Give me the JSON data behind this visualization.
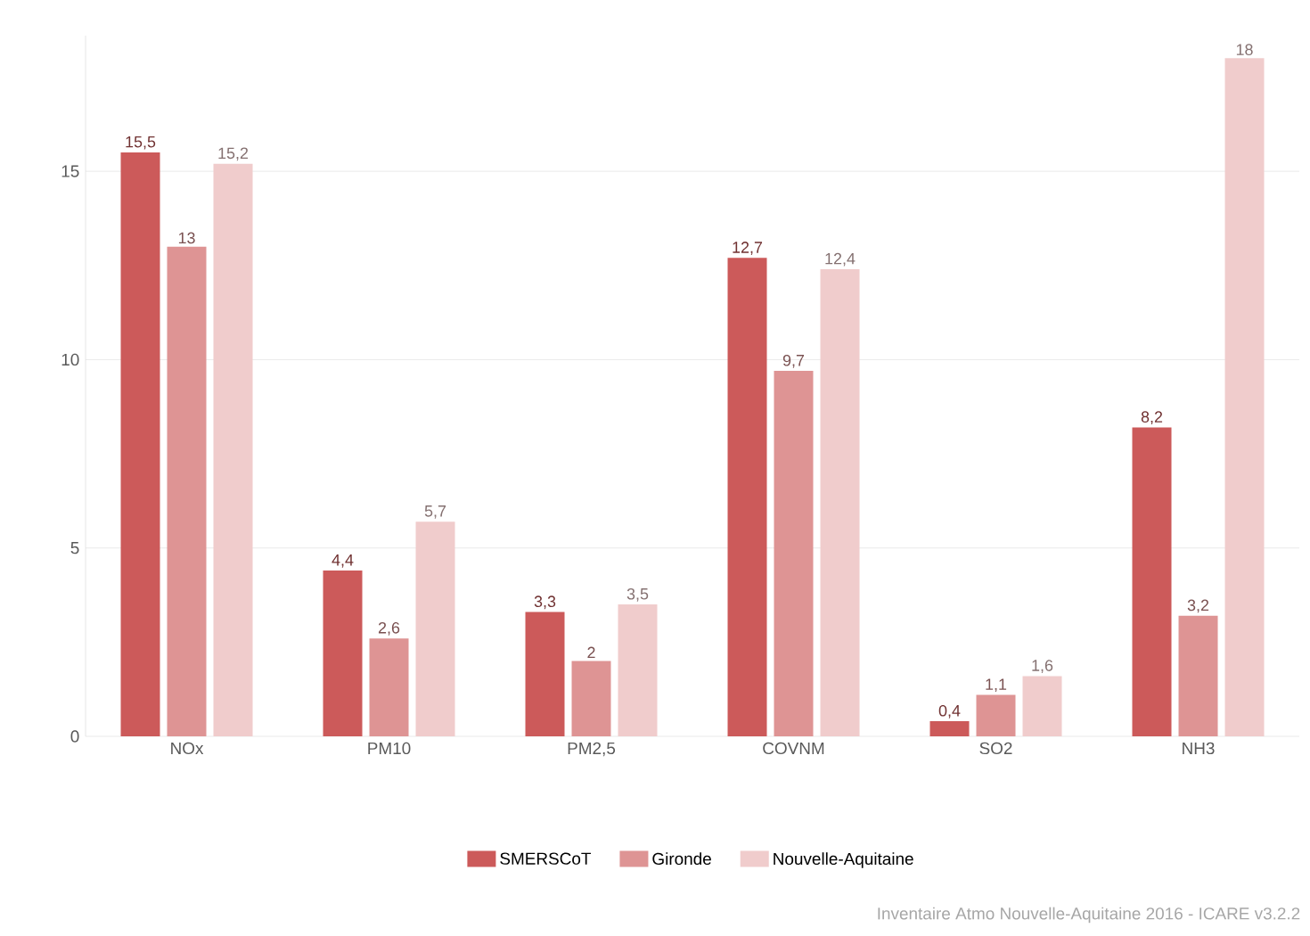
{
  "chart_data": {
    "type": "bar",
    "categories": [
      "NOx",
      "PM10",
      "PM2,5",
      "COVNM",
      "SO2",
      "NH3"
    ],
    "series": [
      {
        "name": "SMERSCoT",
        "color": "#cc5a5a",
        "values": [
          15.5,
          4.4,
          3.3,
          12.7,
          0.4,
          8.2
        ],
        "value_labels": [
          "15,5",
          "4,4",
          "3,3",
          "12,7",
          "0,4",
          "8,2"
        ]
      },
      {
        "name": "Gironde",
        "color": "#de9494",
        "values": [
          13,
          2.6,
          2,
          9.7,
          1.1,
          3.2
        ],
        "value_labels": [
          "13",
          "2,6",
          "2",
          "9,7",
          "1,1",
          "3,2"
        ]
      },
      {
        "name": "Nouvelle-Aquitaine",
        "color": "#f0cccc",
        "values": [
          15.2,
          5.7,
          3.5,
          12.4,
          1.6,
          18
        ],
        "value_labels": [
          "15,2",
          "5,7",
          "3,5",
          "12,4",
          "1,6",
          "18"
        ]
      }
    ],
    "ylim": [
      0,
      18.6
    ],
    "yticks": [
      0,
      5,
      10,
      15
    ],
    "grid": "y",
    "legend": "bottom",
    "annotations": [
      "Inventaire Atmo Nouvelle-Aquitaine 2016 - ICARE v3.2.2"
    ]
  }
}
